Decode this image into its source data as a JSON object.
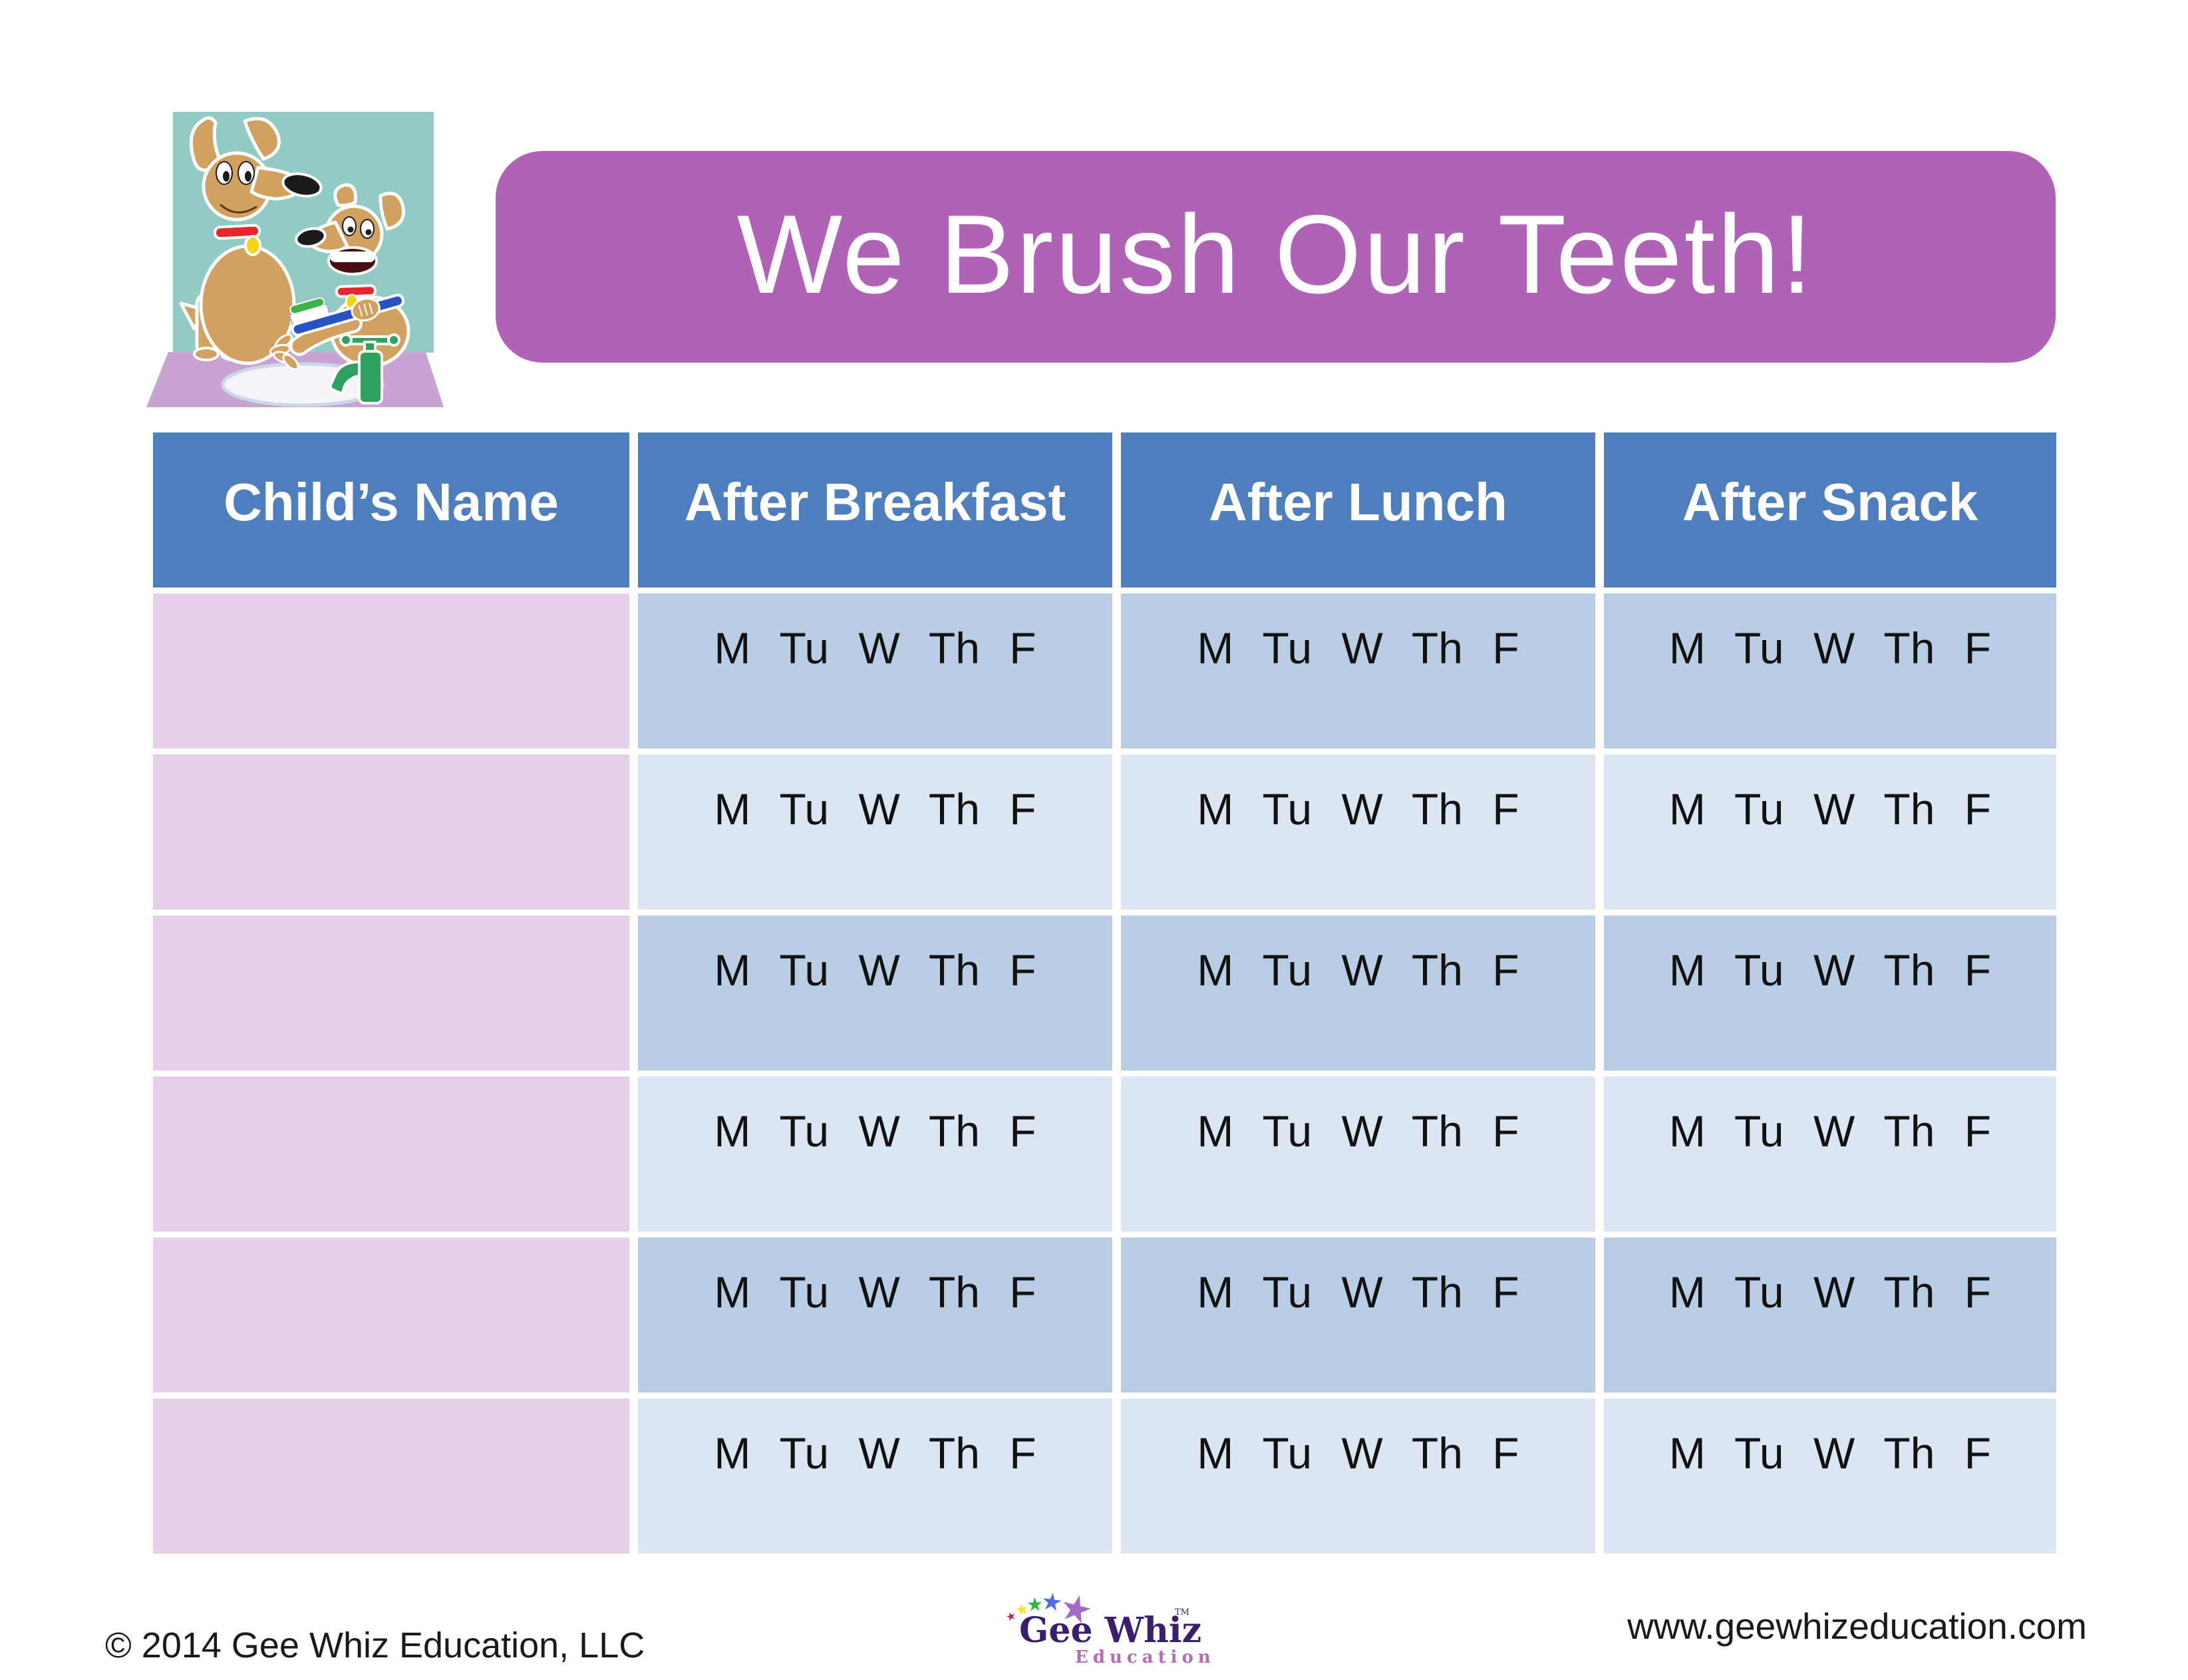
{
  "banner": {
    "title": "We Brush Our Teeth!"
  },
  "illustration": {
    "name": "two-dogs-brushing-teeth-at-sink"
  },
  "table": {
    "columns": [
      "Child’s Name",
      "After Breakfast",
      "After Lunch",
      "After Snack"
    ],
    "days": [
      "M",
      "Tu",
      "W",
      "Th",
      "F"
    ],
    "days_label": "M Tu W Th F",
    "row_count": 6
  },
  "footer": {
    "copyright": "© 2014 Gee Whiz Education, LLC",
    "website": "www.geewhizeducation.com",
    "logo": {
      "main": "Gee Whiz",
      "tm": "TM",
      "sub": "Education",
      "star_icon": "star-icon",
      "star_colors": [
        "#D6185E",
        "#F2E431",
        "#2EB637",
        "#4F69E8",
        "#A569C8"
      ]
    }
  },
  "colors": {
    "page_bg": "#FFFFFF",
    "banner_bg": "#B062B6",
    "banner_text": "#FFFFFF",
    "header_bg": "#4E7EBD",
    "header_text": "#FFFFFF",
    "name_bg": "#E6CFE9",
    "row_dark": "#B9CDE5",
    "row_light": "#DCE6F2",
    "text_dark": "#111111",
    "footer_text": "#1A1A1A",
    "logo_main": "#3B1F6E",
    "logo_sub": "#B56CB5",
    "art_teal": "#92CBC3",
    "art_counter": "#C9A3D2"
  }
}
